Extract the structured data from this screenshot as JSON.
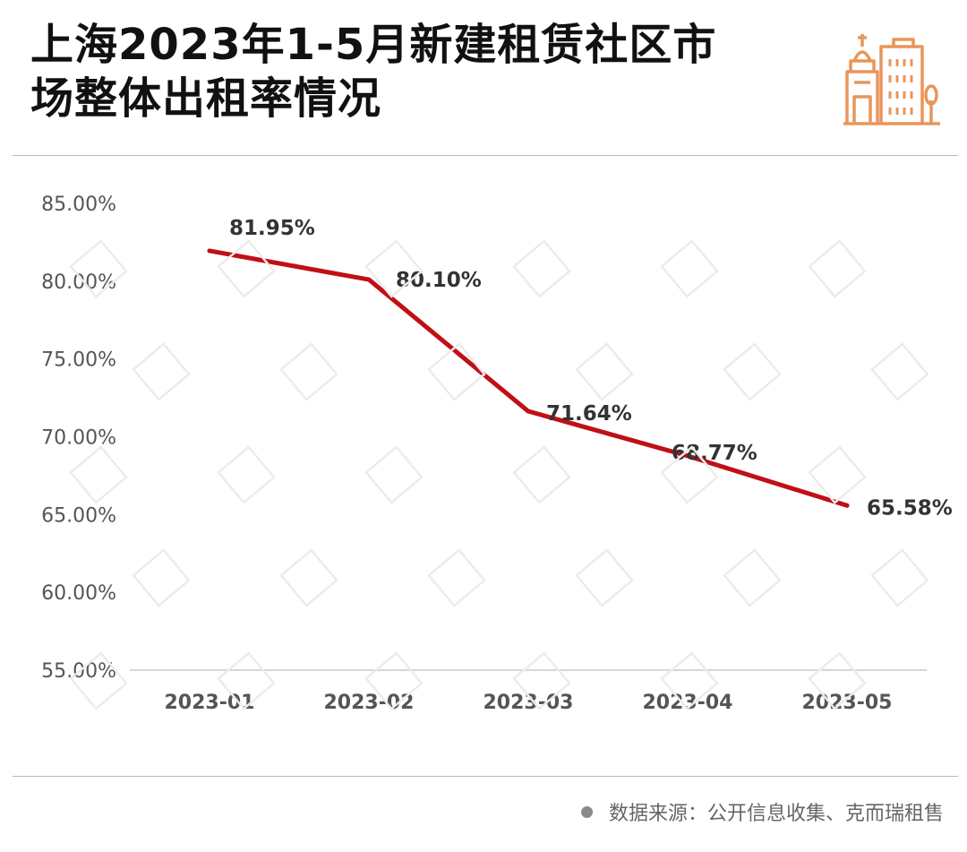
{
  "header": {
    "title_line1": "上海2023年1-5月新建租赁社区市",
    "title_line2": "场整体出租率情况",
    "logo_icon": "city-buildings-icon",
    "accent_color": "#e8965a"
  },
  "chart_data": {
    "type": "line",
    "categories": [
      "2023-01",
      "2023-02",
      "2023-03",
      "2023-04",
      "2023-05"
    ],
    "series": [
      {
        "values": [
          81.95,
          80.1,
          71.64,
          68.77,
          65.58
        ],
        "labels": [
          "81.95%",
          "80.10%",
          "71.64%",
          "68.77%",
          "65.58%"
        ],
        "color": "#c00f16"
      }
    ],
    "y_ticks": [
      "85.00%",
      "80.00%",
      "75.00%",
      "70.00%",
      "65.00%",
      "60.00%",
      "55.00%"
    ],
    "ylim": [
      55,
      85
    ],
    "grid": false
  },
  "footer": {
    "source_text": "数据来源：公开信息收集、克而瑞租售"
  }
}
